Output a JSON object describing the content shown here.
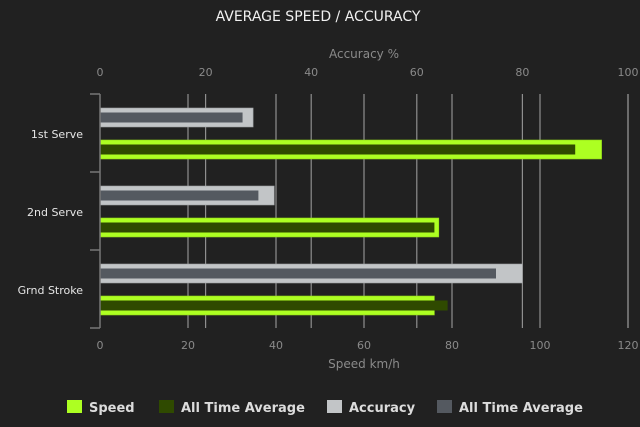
{
  "chart_data": {
    "type": "bar",
    "orientation": "horizontal",
    "title": "AVERAGE SPEED / ACCURACY",
    "categories": [
      "1st Serve",
      "2nd Serve",
      "Grnd Stroke"
    ],
    "x_top": {
      "label": "Accuracy %",
      "range": [
        0,
        100
      ],
      "ticks": [
        0,
        20,
        40,
        60,
        80,
        100
      ]
    },
    "x_bottom": {
      "label": "Speed km/h",
      "range": [
        0,
        120
      ],
      "ticks": [
        0,
        20,
        40,
        60,
        80,
        100,
        120
      ]
    },
    "series": [
      {
        "name": "Speed",
        "axis": "bottom",
        "color": "#adff22",
        "values": [
          114,
          77,
          76
        ]
      },
      {
        "name": "All Time Average",
        "axis": "bottom",
        "color": "#2f4a00",
        "values": [
          108,
          76,
          79
        ]
      },
      {
        "name": "Accuracy",
        "axis": "top",
        "color": "#c2c5c7",
        "values": [
          29,
          33,
          80
        ]
      },
      {
        "name": "All Time Average",
        "axis": "top",
        "color": "#545960",
        "values": [
          27,
          30,
          75
        ]
      }
    ],
    "grid": true,
    "legend": "bottom"
  }
}
